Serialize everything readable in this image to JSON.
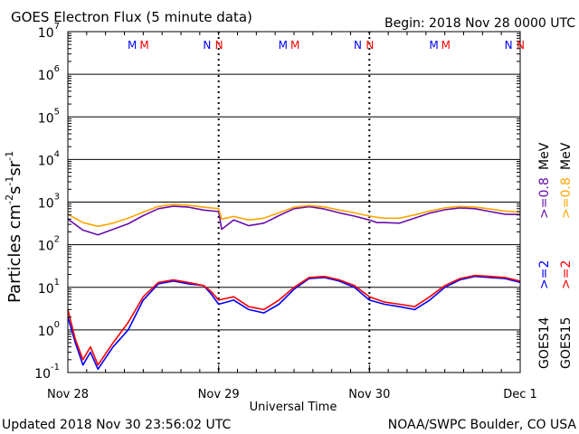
{
  "header": {
    "title": "GOES Electron Flux (5 minute data)",
    "begin": "Begin: 2018 Nov 28 0000 UTC"
  },
  "footer": {
    "updated": "Updated 2018 Nov 30 23:56:02 UTC",
    "credit": "NOAA/SWPC Boulder, CO USA"
  },
  "chart_data": {
    "type": "line",
    "title": "GOES Electron Flux (5 minute data)",
    "xlabel": "Universal Time",
    "ylabel": "Particles cm-2 s-1 sr-1",
    "yscale": "log",
    "ylim": [
      0.1,
      10000000
    ],
    "xlim": [
      0,
      3
    ],
    "y_ticks": [
      {
        "base": "10",
        "exp": "-1"
      },
      {
        "base": "10",
        "exp": "0"
      },
      {
        "base": "10",
        "exp": "1"
      },
      {
        "base": "10",
        "exp": "2"
      },
      {
        "base": "10",
        "exp": "3"
      },
      {
        "base": "10",
        "exp": "4"
      },
      {
        "base": "10",
        "exp": "5"
      },
      {
        "base": "10",
        "exp": "6"
      },
      {
        "base": "10",
        "exp": "7"
      }
    ],
    "x_ticks": [
      "Nov 28",
      "Nov 29",
      "Nov 30",
      "Dec 1"
    ],
    "grid": true,
    "threshold": {
      "value": 1000,
      "style": "dashed"
    },
    "markers": [
      {
        "label": "M",
        "x": 0.42,
        "color": "#0000ff"
      },
      {
        "label": "M",
        "x": 0.5,
        "color": "#ff0000"
      },
      {
        "label": "N",
        "x": 0.92,
        "color": "#0000ff"
      },
      {
        "label": "N",
        "x": 1.0,
        "color": "#ff0000"
      },
      {
        "label": "M",
        "x": 1.42,
        "color": "#0000ff"
      },
      {
        "label": "M",
        "x": 1.5,
        "color": "#ff0000"
      },
      {
        "label": "N",
        "x": 1.92,
        "color": "#0000ff"
      },
      {
        "label": "N",
        "x": 2.0,
        "color": "#ff0000"
      },
      {
        "label": "M",
        "x": 2.42,
        "color": "#0000ff"
      },
      {
        "label": "M",
        "x": 2.5,
        "color": "#ff0000"
      },
      {
        "label": "N",
        "x": 2.92,
        "color": "#0000ff"
      },
      {
        "label": "N",
        "x": 3.0,
        "color": "#ff0000"
      }
    ],
    "legend": {
      "position": "right",
      "satellites": [
        {
          "text": "GOES14",
          "color": "#000000"
        },
        {
          "text": "GOES15",
          "color": "#000000"
        }
      ],
      "entries": [
        {
          "text": ">=2",
          "color": "#0000ff"
        },
        {
          "text": ">=2",
          "color": "#ff0000"
        },
        {
          "text": ">=0.8",
          "color": "#6a0dad"
        },
        {
          "text": ">=0.8",
          "color": "#ffa500"
        }
      ],
      "unit": "MeV"
    },
    "series": [
      {
        "color": "#6a0dad",
        "x": [
          0,
          0.1,
          0.2,
          0.3,
          0.4,
          0.5,
          0.6,
          0.7,
          0.8,
          0.9,
          1.0,
          1.02,
          1.1,
          1.2,
          1.3,
          1.4,
          1.5,
          1.6,
          1.7,
          1.8,
          1.9,
          2.0,
          2.05,
          2.1,
          2.2,
          2.3,
          2.4,
          2.5,
          2.6,
          2.7,
          2.8,
          2.9,
          3.0
        ],
        "values": [
          400,
          220,
          170,
          230,
          310,
          480,
          700,
          800,
          760,
          650,
          600,
          230,
          380,
          280,
          320,
          480,
          700,
          780,
          690,
          560,
          470,
          380,
          330,
          330,
          320,
          420,
          550,
          660,
          730,
          700,
          600,
          520,
          510
        ]
      },
      {
        "color": "#ffa500",
        "x": [
          0,
          0.1,
          0.2,
          0.3,
          0.4,
          0.5,
          0.6,
          0.7,
          0.8,
          0.9,
          1.0,
          1.02,
          1.1,
          1.2,
          1.3,
          1.4,
          1.5,
          1.6,
          1.7,
          1.8,
          1.9,
          2.0,
          2.05,
          2.1,
          2.2,
          2.3,
          2.4,
          2.5,
          2.6,
          2.7,
          2.8,
          2.9,
          3.0
        ],
        "values": [
          520,
          330,
          270,
          320,
          420,
          580,
          790,
          880,
          840,
          760,
          700,
          400,
          460,
          380,
          420,
          560,
          760,
          830,
          770,
          650,
          560,
          470,
          440,
          420,
          420,
          500,
          620,
          730,
          790,
          760,
          690,
          610,
          580
        ]
      },
      {
        "color": "#0000ff",
        "x": [
          0,
          0.05,
          0.1,
          0.15,
          0.2,
          0.3,
          0.4,
          0.5,
          0.6,
          0.7,
          0.8,
          0.9,
          0.95,
          1.0,
          1.1,
          1.2,
          1.3,
          1.4,
          1.5,
          1.6,
          1.7,
          1.8,
          1.9,
          2.0,
          2.1,
          2.2,
          2.3,
          2.4,
          2.5,
          2.6,
          2.7,
          2.8,
          2.9,
          3.0
        ],
        "values": [
          2,
          0.5,
          0.15,
          0.3,
          0.12,
          0.4,
          1,
          5,
          12,
          14,
          12,
          11,
          7,
          4,
          5,
          3,
          2.5,
          4,
          9,
          16,
          17,
          14,
          10,
          5,
          4,
          3.5,
          3,
          5,
          10,
          15,
          18,
          17,
          16,
          13
        ]
      },
      {
        "color": "#ff0000",
        "x": [
          0,
          0.05,
          0.1,
          0.15,
          0.2,
          0.3,
          0.4,
          0.5,
          0.6,
          0.7,
          0.8,
          0.9,
          0.95,
          1.0,
          1.1,
          1.2,
          1.3,
          1.4,
          1.5,
          1.6,
          1.7,
          1.8,
          1.9,
          2.0,
          2.1,
          2.2,
          2.3,
          2.4,
          2.5,
          2.6,
          2.7,
          2.8,
          2.9,
          3.0
        ],
        "values": [
          3,
          0.6,
          0.2,
          0.4,
          0.15,
          0.5,
          1.5,
          6,
          13,
          15,
          13,
          11,
          8,
          5,
          6,
          3.5,
          3,
          5,
          10,
          17,
          18,
          15,
          11,
          6,
          4.5,
          4,
          3.5,
          6,
          11,
          16,
          19,
          18,
          17,
          14
        ]
      }
    ]
  }
}
